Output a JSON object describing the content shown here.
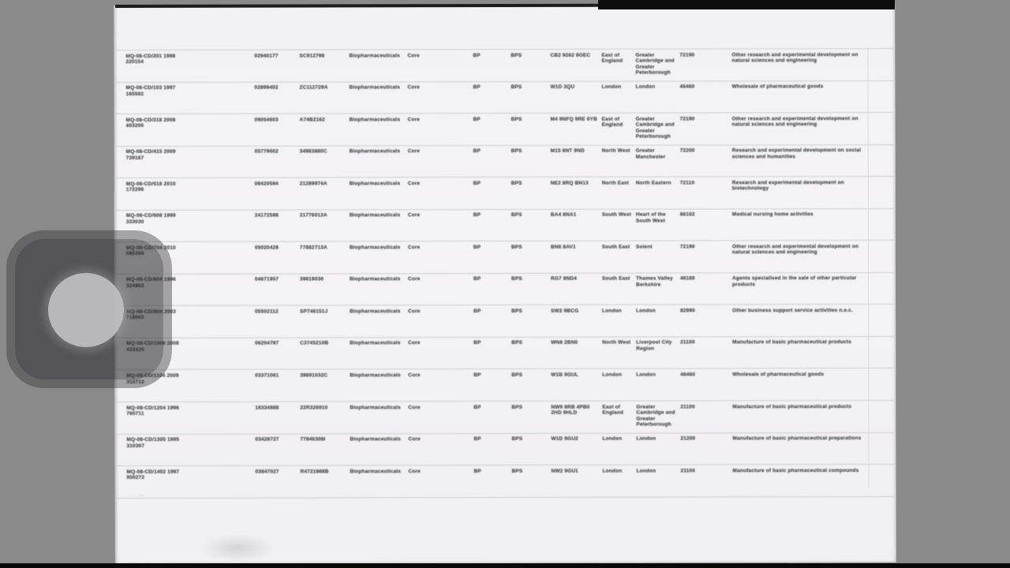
{
  "colors": {
    "background": "#8a8a8a",
    "page": "#f2f1f3",
    "scan_edge": "#0c0c0c",
    "row_separator": "#cdcdd1",
    "text": "#4e4e52",
    "overlay": "rgba(52,52,54,0.42)",
    "overlay_circle": "#c0c0c4"
  },
  "table": {
    "sector_label": "Biopharmaceuticals",
    "subsector_label": "Core",
    "flag1_label": "BP",
    "flag2_label": "BPS",
    "rows": [
      {
        "ref": "MQ-08-CD/201 1998",
        "ref2": "220154",
        "num1": "02940177",
        "num2": "SC912798",
        "postcode": "CB2 9262 9GEC",
        "region": "East of England",
        "lep": "Greater Cambridge and Greater Peterborough",
        "sic": "72190",
        "desc": "Other research and experimental development on natural sciences and engineering"
      },
      {
        "ref": "MQ-08-CD/103 1997",
        "ref2": "165592",
        "num1": "02899402",
        "num2": "ZC112729A",
        "postcode": "W1D 3QU",
        "region": "London",
        "lep": "London",
        "sic": "46460",
        "desc": "Wholesale of pharmaceutical goods"
      },
      {
        "ref": "MQ-08-CD/318 2008",
        "ref2": "403200",
        "num1": "09054603",
        "num2": "A74B2162",
        "postcode": "M4 9NFQ 9RE 6YB",
        "region": "East of England",
        "lep": "Greater Cambridge and Greater Peterborough",
        "sic": "72190",
        "desc": "Other research and experimental development on natural sciences and engineering"
      },
      {
        "ref": "MQ-08-CD/415 2009",
        "ref2": "739167",
        "num1": "05779002",
        "num2": "34983880C",
        "postcode": "M15 6NT 9ND",
        "region": "North West",
        "lep": "Greater Manchester",
        "sic": "72200",
        "desc": "Research and experimental development on social sciences and humanities"
      },
      {
        "ref": "MQ-08-CD/516 2010",
        "ref2": "172296",
        "num1": "08420594",
        "num2": "21289974A",
        "postcode": "NE2 8RQ BN13",
        "region": "North East",
        "lep": "North Eastern",
        "sic": "72110",
        "desc": "Research and experimental development on biotechnology"
      },
      {
        "ref": "MQ-08-CD/608 1999",
        "ref2": "333030",
        "num1": "24172598",
        "num2": "21776013A",
        "postcode": "BA4 8NA1",
        "region": "South West",
        "lep": "Heart of the South West",
        "sic": "86102",
        "desc": "Medical nursing home activities"
      },
      {
        "ref": "MQ-08-CD/704 2010",
        "ref2": "585280",
        "num1": "05020428",
        "num2": "77882713A",
        "postcode": "BN6 8AV1",
        "region": "South East",
        "lep": "Solent",
        "sic": "72190",
        "desc": "Other research and experimental development on natural sciences and engineering"
      },
      {
        "ref": "MQ-08-CD/804 1996",
        "ref2": "324862",
        "num1": "04671957",
        "num2": "39619030",
        "postcode": "RG7 8ND4",
        "region": "South East",
        "lep": "Thames Valley Berkshire",
        "sic": "46180",
        "desc": "Agents specialised in the sale of other particular products"
      },
      {
        "ref": "MQ-08-CD/904 2003",
        "ref2": "718063",
        "num1": "05502112",
        "num2": "SP746151J",
        "postcode": "SW2 9BCG",
        "region": "London",
        "lep": "London",
        "sic": "82990",
        "desc": "Other business support service activities n.e.c."
      },
      {
        "ref": "MQ-08-CD/1008 2008",
        "ref2": "433325",
        "num1": "06204787",
        "num2": "C3745210B",
        "postcode": "WN8 2BN0",
        "region": "North West",
        "lep": "Liverpool City Region",
        "sic": "21100",
        "desc": "Manufacture of basic pharmaceutical products"
      },
      {
        "ref": "MQ-08-CD/1104 2009",
        "ref2": "310712",
        "num1": "03371061",
        "num2": "39691032C",
        "postcode": "W1B 9GUL",
        "region": "London",
        "lep": "London",
        "sic": "46460",
        "desc": "Wholesale of pharmaceutical goods"
      },
      {
        "ref": "MQ-08-CD/1204 1996",
        "ref2": "760711",
        "num1": "16334888",
        "num2": "22R326910",
        "postcode": "NW9 8RB 4PB0 2HD 9HLD",
        "region": "East of England",
        "lep": "Greater Cambridge and Greater Peterborough",
        "sic": "21100",
        "desc": "Manufacture of basic pharmaceutical products"
      },
      {
        "ref": "MQ-08-CD/1305 1995",
        "ref2": "310367",
        "num1": "03428727",
        "num2": "77846308I",
        "postcode": "W1D 9GU2",
        "region": "London",
        "lep": "London",
        "sic": "21200",
        "desc": "Manufacture of basic pharmaceutical preparations"
      },
      {
        "ref": "MQ-08-CD/1402 1997",
        "ref2": "950272",
        "num1": "03847027",
        "num2": "R4721868B",
        "postcode": "NW2 9GU1",
        "region": "London",
        "lep": "London",
        "sic": "21100",
        "desc": "Manufacture of basic pharmaceutical compounds"
      }
    ]
  },
  "artifacts": {
    "footer_marks": "·· —"
  }
}
